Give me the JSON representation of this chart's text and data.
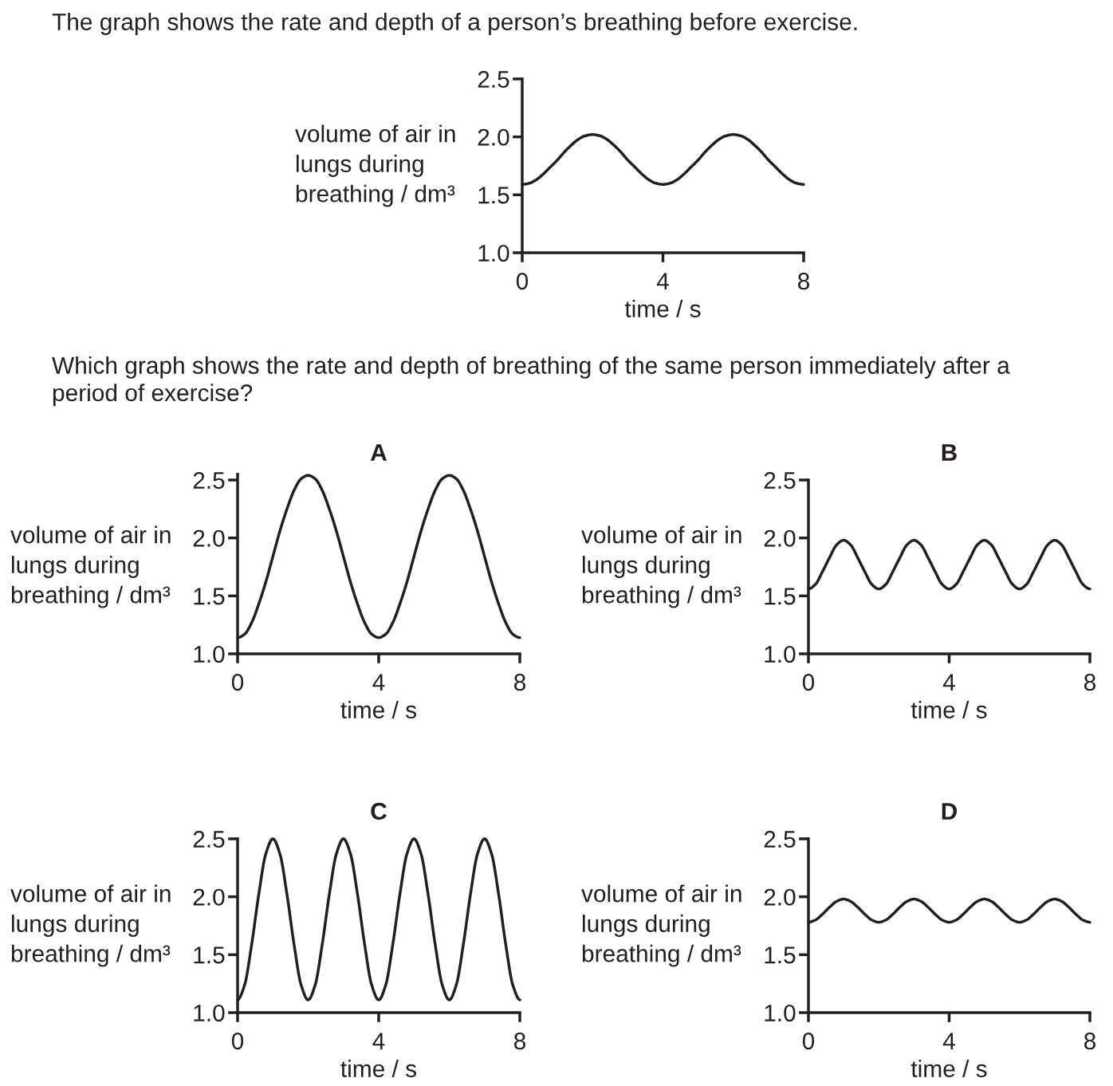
{
  "chart_data": [
    {
      "type": "line",
      "title": "The graph shows the rate and depth of a person’s breathing before exercise.",
      "annotations": [
        "Which graph shows the rate and depth of breathing of the same person immediately after a\nperiod of exercise?"
      ],
      "xlabel": "time / s",
      "ylabel": "volume of air in\nlungs during\nbreathing / dm³",
      "x": [
        0,
        0.2,
        0.4,
        0.6,
        0.8,
        1,
        1.2,
        1.4,
        1.6,
        1.8,
        2,
        2.2,
        2.4,
        2.6,
        2.8,
        3,
        3.2,
        3.4,
        3.6,
        3.8,
        4,
        4.2,
        4.4,
        4.6,
        4.8,
        5,
        5.2,
        5.4,
        5.6,
        5.8,
        6,
        6.2,
        6.4,
        6.6,
        6.8,
        7,
        7.2,
        7.4,
        7.6,
        7.8,
        8
      ],
      "series": [
        {
          "color": "#231f20",
          "values": [
            1.59,
            1.6,
            1.63,
            1.68,
            1.74,
            1.8,
            1.87,
            1.93,
            1.98,
            2.01,
            2.02,
            2.01,
            1.98,
            1.93,
            1.87,
            1.8,
            1.74,
            1.68,
            1.63,
            1.6,
            1.59,
            1.6,
            1.63,
            1.68,
            1.74,
            1.8,
            1.87,
            1.93,
            1.98,
            2.01,
            2.02,
            2.01,
            1.98,
            1.93,
            1.87,
            1.8,
            1.74,
            1.68,
            1.63,
            1.6,
            1.59
          ]
        }
      ],
      "xlim": [
        0,
        8
      ],
      "xticks": [
        0,
        4,
        8
      ],
      "ylim": [
        1,
        2.5
      ],
      "yticks": [
        {
          "value": 1,
          "label": "1.0"
        },
        {
          "value": 1.5,
          "label": "1.5"
        },
        {
          "value": 2,
          "label": "2.0"
        },
        {
          "value": 2.5,
          "label": "2.5"
        }
      ]
    },
    {
      "type": "line",
      "title": "A",
      "xlabel": "time / s",
      "ylabel": "volume of air in\nlungs during\nbreathing / dm³",
      "x": [
        0,
        0.2,
        0.4,
        0.6,
        0.8,
        1,
        1.2,
        1.4,
        1.6,
        1.8,
        2,
        2.2,
        2.4,
        2.6,
        2.8,
        3,
        3.2,
        3.4,
        3.6,
        3.8,
        4,
        4.2,
        4.4,
        4.6,
        4.8,
        5,
        5.2,
        5.4,
        5.6,
        5.8,
        6,
        6.2,
        6.4,
        6.6,
        6.8,
        7,
        7.2,
        7.4,
        7.6,
        7.8,
        8
      ],
      "series": [
        {
          "color": "#231f20",
          "values": [
            1.14,
            1.17,
            1.27,
            1.43,
            1.62,
            1.84,
            2.06,
            2.25,
            2.41,
            2.51,
            2.54,
            2.51,
            2.41,
            2.25,
            2.06,
            1.84,
            1.62,
            1.43,
            1.27,
            1.17,
            1.14,
            1.17,
            1.27,
            1.43,
            1.62,
            1.84,
            2.06,
            2.25,
            2.41,
            2.51,
            2.54,
            2.51,
            2.41,
            2.25,
            2.06,
            1.84,
            1.62,
            1.43,
            1.27,
            1.17,
            1.14
          ]
        }
      ],
      "xlim": [
        0,
        8
      ],
      "xticks": [
        0,
        4,
        8
      ],
      "ylim": [
        1,
        2.55
      ],
      "yticks": [
        {
          "value": 1,
          "label": "1.0"
        },
        {
          "value": 1.5,
          "label": "1.5"
        },
        {
          "value": 2,
          "label": "2.0"
        },
        {
          "value": 2.5,
          "label": "2.5"
        }
      ]
    },
    {
      "type": "line",
      "title": "B",
      "xlabel": "time / s",
      "ylabel": "volume of air in\nlungs during\nbreathing / dm³",
      "x": [
        0,
        0.2,
        0.4,
        0.6,
        0.8,
        1,
        1.2,
        1.4,
        1.6,
        1.8,
        2,
        2.2,
        2.4,
        2.6,
        2.8,
        3,
        3.2,
        3.4,
        3.6,
        3.8,
        4,
        4.2,
        4.4,
        4.6,
        4.8,
        5,
        5.2,
        5.4,
        5.6,
        5.8,
        6,
        6.2,
        6.4,
        6.6,
        6.8,
        7,
        7.2,
        7.4,
        7.6,
        7.8,
        8
      ],
      "series": [
        {
          "color": "#231f20",
          "values": [
            1.56,
            1.6,
            1.71,
            1.83,
            1.94,
            1.98,
            1.94,
            1.83,
            1.71,
            1.6,
            1.56,
            1.6,
            1.71,
            1.83,
            1.94,
            1.98,
            1.94,
            1.83,
            1.71,
            1.6,
            1.56,
            1.6,
            1.71,
            1.83,
            1.94,
            1.98,
            1.94,
            1.83,
            1.71,
            1.6,
            1.56,
            1.6,
            1.71,
            1.83,
            1.94,
            1.98,
            1.94,
            1.83,
            1.71,
            1.6,
            1.56
          ]
        }
      ],
      "xlim": [
        0,
        8
      ],
      "xticks": [
        0,
        4,
        8
      ],
      "ylim": [
        1,
        2.5
      ],
      "yticks": [
        {
          "value": 1,
          "label": "1.0"
        },
        {
          "value": 1.5,
          "label": "1.5"
        },
        {
          "value": 2,
          "label": "2.0"
        },
        {
          "value": 2.5,
          "label": "2.5"
        }
      ]
    },
    {
      "type": "line",
      "title": "C",
      "xlabel": "time / s",
      "ylabel": "volume of air in\nlungs during\nbreathing / dm³",
      "x": [
        0,
        0.2,
        0.4,
        0.6,
        0.8,
        1,
        1.2,
        1.4,
        1.6,
        1.8,
        2,
        2.2,
        2.4,
        2.6,
        2.8,
        3,
        3.2,
        3.4,
        3.6,
        3.8,
        4,
        4.2,
        4.4,
        4.6,
        4.8,
        5,
        5.2,
        5.4,
        5.6,
        5.8,
        6,
        6.2,
        6.4,
        6.6,
        6.8,
        7,
        7.2,
        7.4,
        7.6,
        7.8,
        8
      ],
      "series": [
        {
          "color": "#231f20",
          "values": [
            1.11,
            1.24,
            1.59,
            2.02,
            2.37,
            2.5,
            2.37,
            2.02,
            1.59,
            1.24,
            1.11,
            1.24,
            1.59,
            2.02,
            2.37,
            2.5,
            2.37,
            2.02,
            1.59,
            1.24,
            1.11,
            1.24,
            1.59,
            2.02,
            2.37,
            2.5,
            2.37,
            2.02,
            1.59,
            1.24,
            1.11,
            1.24,
            1.59,
            2.02,
            2.37,
            2.5,
            2.37,
            2.02,
            1.59,
            1.24,
            1.11
          ]
        }
      ],
      "xlim": [
        0,
        8
      ],
      "xticks": [
        0,
        4,
        8
      ],
      "ylim": [
        1,
        2.5
      ],
      "yticks": [
        {
          "value": 1,
          "label": "1.0"
        },
        {
          "value": 1.5,
          "label": "1.5"
        },
        {
          "value": 2,
          "label": "2.0"
        },
        {
          "value": 2.5,
          "label": "2.5"
        }
      ]
    },
    {
      "type": "line",
      "title": "D",
      "xlabel": "time / s",
      "ylabel": "volume of air in\nlungs during\nbreathing / dm³",
      "x": [
        0,
        0.2,
        0.4,
        0.6,
        0.8,
        1,
        1.2,
        1.4,
        1.6,
        1.8,
        2,
        2.2,
        2.4,
        2.6,
        2.8,
        3,
        3.2,
        3.4,
        3.6,
        3.8,
        4,
        4.2,
        4.4,
        4.6,
        4.8,
        5,
        5.2,
        5.4,
        5.6,
        5.8,
        6,
        6.2,
        6.4,
        6.6,
        6.8,
        7,
        7.2,
        7.4,
        7.6,
        7.8,
        8
      ],
      "series": [
        {
          "color": "#231f20",
          "values": [
            1.78,
            1.8,
            1.85,
            1.91,
            1.96,
            1.98,
            1.96,
            1.91,
            1.85,
            1.8,
            1.78,
            1.8,
            1.85,
            1.91,
            1.96,
            1.98,
            1.96,
            1.91,
            1.85,
            1.8,
            1.78,
            1.8,
            1.85,
            1.91,
            1.96,
            1.98,
            1.96,
            1.91,
            1.85,
            1.8,
            1.78,
            1.8,
            1.85,
            1.91,
            1.96,
            1.98,
            1.96,
            1.91,
            1.85,
            1.8,
            1.78
          ]
        }
      ],
      "xlim": [
        0,
        8
      ],
      "xticks": [
        0,
        4,
        8
      ],
      "ylim": [
        1,
        2.5
      ],
      "yticks": [
        {
          "value": 1,
          "label": "1.0"
        },
        {
          "value": 1.5,
          "label": "1.5"
        },
        {
          "value": 2,
          "label": "2.0"
        },
        {
          "value": 2.5,
          "label": "2.5"
        }
      ]
    }
  ]
}
